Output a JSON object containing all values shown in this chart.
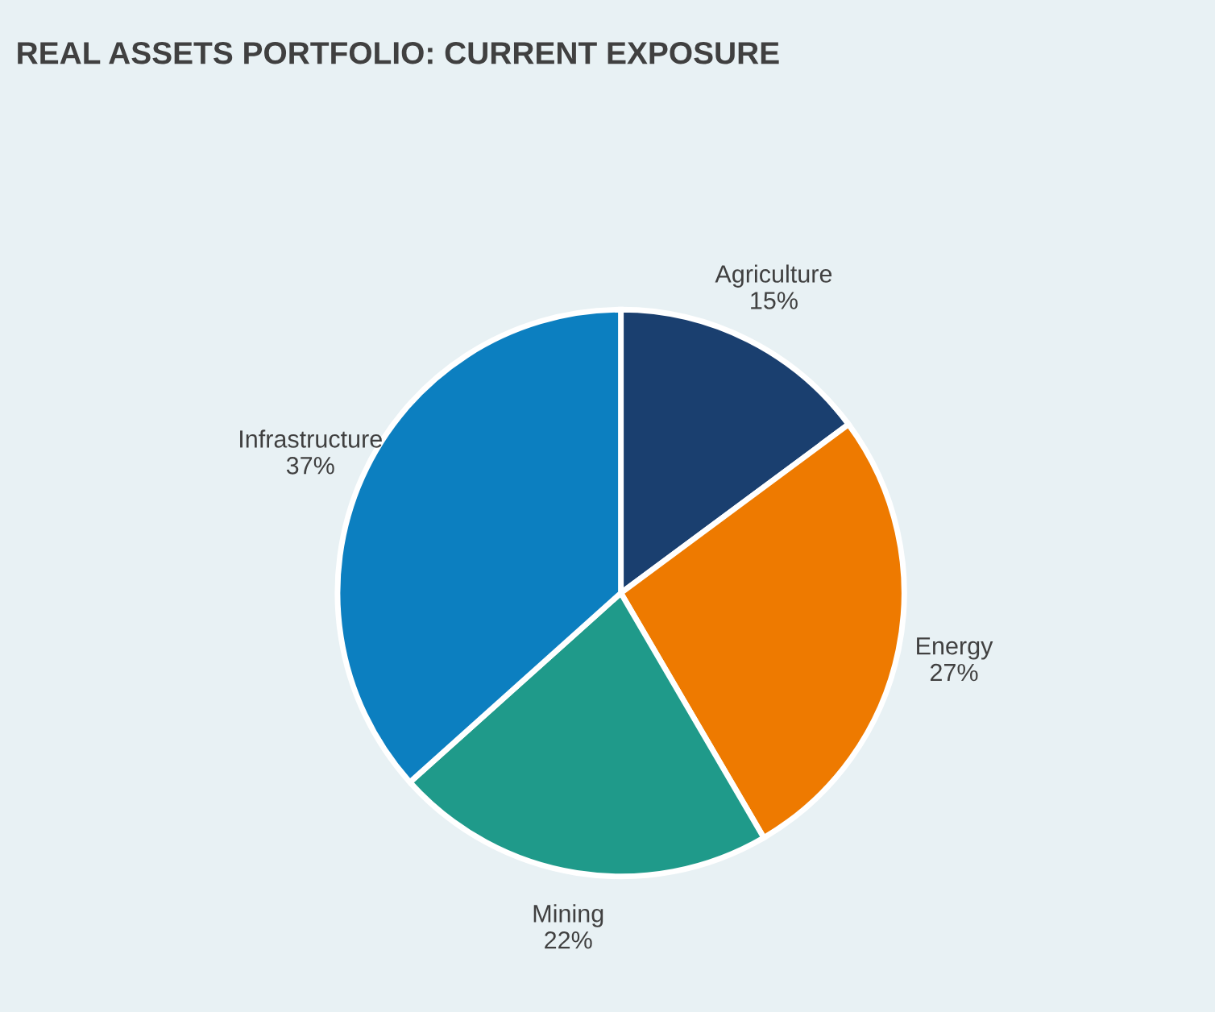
{
  "chart_data": {
    "type": "pie",
    "title": "REAL ASSETS PORTFOLIO: CURRENT EXPOSURE",
    "categories": [
      "Agriculture",
      "Energy",
      "Mining",
      "Infrastructure"
    ],
    "values": [
      15,
      27,
      22,
      37
    ],
    "value_labels": [
      "15%",
      "27%",
      "22%",
      "37%"
    ],
    "colors": [
      "#1a3f6f",
      "#ee7a00",
      "#1f9a8a",
      "#0c7fc0"
    ]
  }
}
